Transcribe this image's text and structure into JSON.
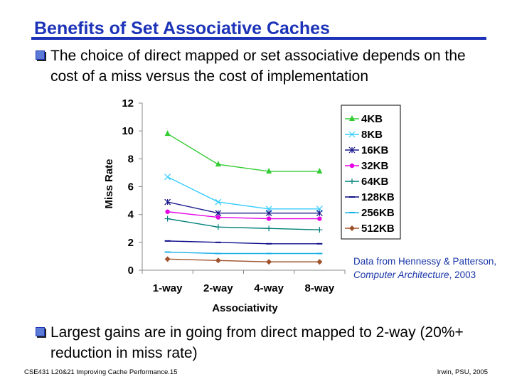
{
  "slide": {
    "title": "Benefits of Set Associative Caches",
    "bullet1": "The choice of direct mapped or set associative depends on the cost of a miss versus the cost of implementation",
    "bullet2": "Largest gains are in going from direct mapped to 2-way (20%+ reduction in miss rate)",
    "note_prefix": "Data from Hennessy & Patterson, ",
    "note_book": "Computer Architecture",
    "note_suffix": ", 2003",
    "footer_left": "CSE431  L20&21 Improving Cache Performance.15",
    "footer_right": "Irwin, PSU, 2005"
  },
  "colors": {
    "title": "#1c33b8",
    "note": "#1a36a8"
  },
  "chart_data": {
    "type": "line",
    "title": "",
    "xlabel": "Associativity",
    "ylabel": "Miss Rate",
    "categories": [
      "1-way",
      "2-way",
      "4-way",
      "8-way"
    ],
    "ylim": [
      0,
      12
    ],
    "yticks": [
      0,
      2,
      4,
      6,
      8,
      10,
      12
    ],
    "legend_position": "right",
    "series": [
      {
        "name": "4KB",
        "values": [
          9.8,
          7.6,
          7.1,
          7.1
        ],
        "color": "#33cc33",
        "marker": "triangle"
      },
      {
        "name": "8KB",
        "values": [
          6.7,
          4.9,
          4.4,
          4.4
        ],
        "color": "#33ccff",
        "marker": "x"
      },
      {
        "name": "16KB",
        "values": [
          4.9,
          4.1,
          4.1,
          4.1
        ],
        "color": "#1a1a8c",
        "marker": "star"
      },
      {
        "name": "32KB",
        "values": [
          4.2,
          3.8,
          3.7,
          3.7
        ],
        "color": "#e600e6",
        "marker": "circle"
      },
      {
        "name": "64KB",
        "values": [
          3.7,
          3.1,
          3.0,
          2.9
        ],
        "color": "#00807a",
        "marker": "plus"
      },
      {
        "name": "128KB",
        "values": [
          2.1,
          2.0,
          1.9,
          1.9
        ],
        "color": "#0c0c8a",
        "marker": "dash"
      },
      {
        "name": "256KB",
        "values": [
          1.3,
          1.2,
          1.2,
          1.2
        ],
        "color": "#1ab0e8",
        "marker": "dash"
      },
      {
        "name": "512KB",
        "values": [
          0.8,
          0.7,
          0.6,
          0.6
        ],
        "color": "#a0522d",
        "marker": "diamond"
      }
    ]
  }
}
